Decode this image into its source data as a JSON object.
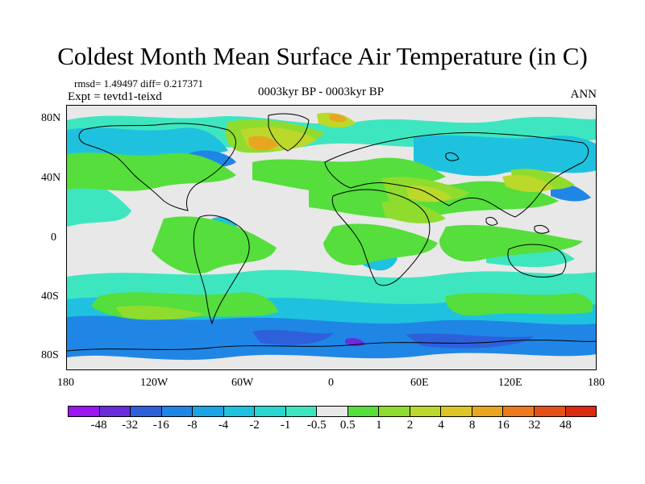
{
  "title": "Coldest Month Mean Surface Air Temperature (in C)",
  "stats": "rmsd= 1.49497 diff= 0.217371",
  "experiment": "Expt = tevtd1-teixd",
  "period": "0003kyr BP - 0003kyr BP",
  "season": "ANN",
  "lat_labels": [
    "80N",
    "40N",
    "0",
    "40S",
    "80S"
  ],
  "lon_labels": [
    "180",
    "120W",
    "60W",
    "0",
    "60E",
    "120E",
    "180"
  ],
  "colorbar": {
    "colors": [
      "#9a14f4",
      "#6a2ddc",
      "#2e60dc",
      "#1f86e6",
      "#1ba4e4",
      "#1fc2de",
      "#2ad6d0",
      "#3ee6c0",
      "#e8e8e8",
      "#55de3c",
      "#8fdc2e",
      "#bcd82a",
      "#dcc626",
      "#e8a620",
      "#ec7a1c",
      "#e65018",
      "#dc2a0e"
    ],
    "labels": [
      "-48",
      "-32",
      "-16",
      "-8",
      "-4",
      "-2",
      "-1",
      "-0.5",
      "0.5",
      "1",
      "2",
      "4",
      "8",
      "16",
      "32",
      "48"
    ]
  },
  "map_colors": {
    "background": "#e8e8e8",
    "light_cyan": "#3ee6c0",
    "cyan": "#1fc2de",
    "light_blue": "#1ba4e4",
    "blue": "#1f86e6",
    "dark_blue": "#2e60dc",
    "purple": "#6a2ddc",
    "green": "#55de3c",
    "yellow_green": "#8fdc2e",
    "olive": "#bcd82a",
    "orange": "#e8a620",
    "coast": "#000000"
  }
}
